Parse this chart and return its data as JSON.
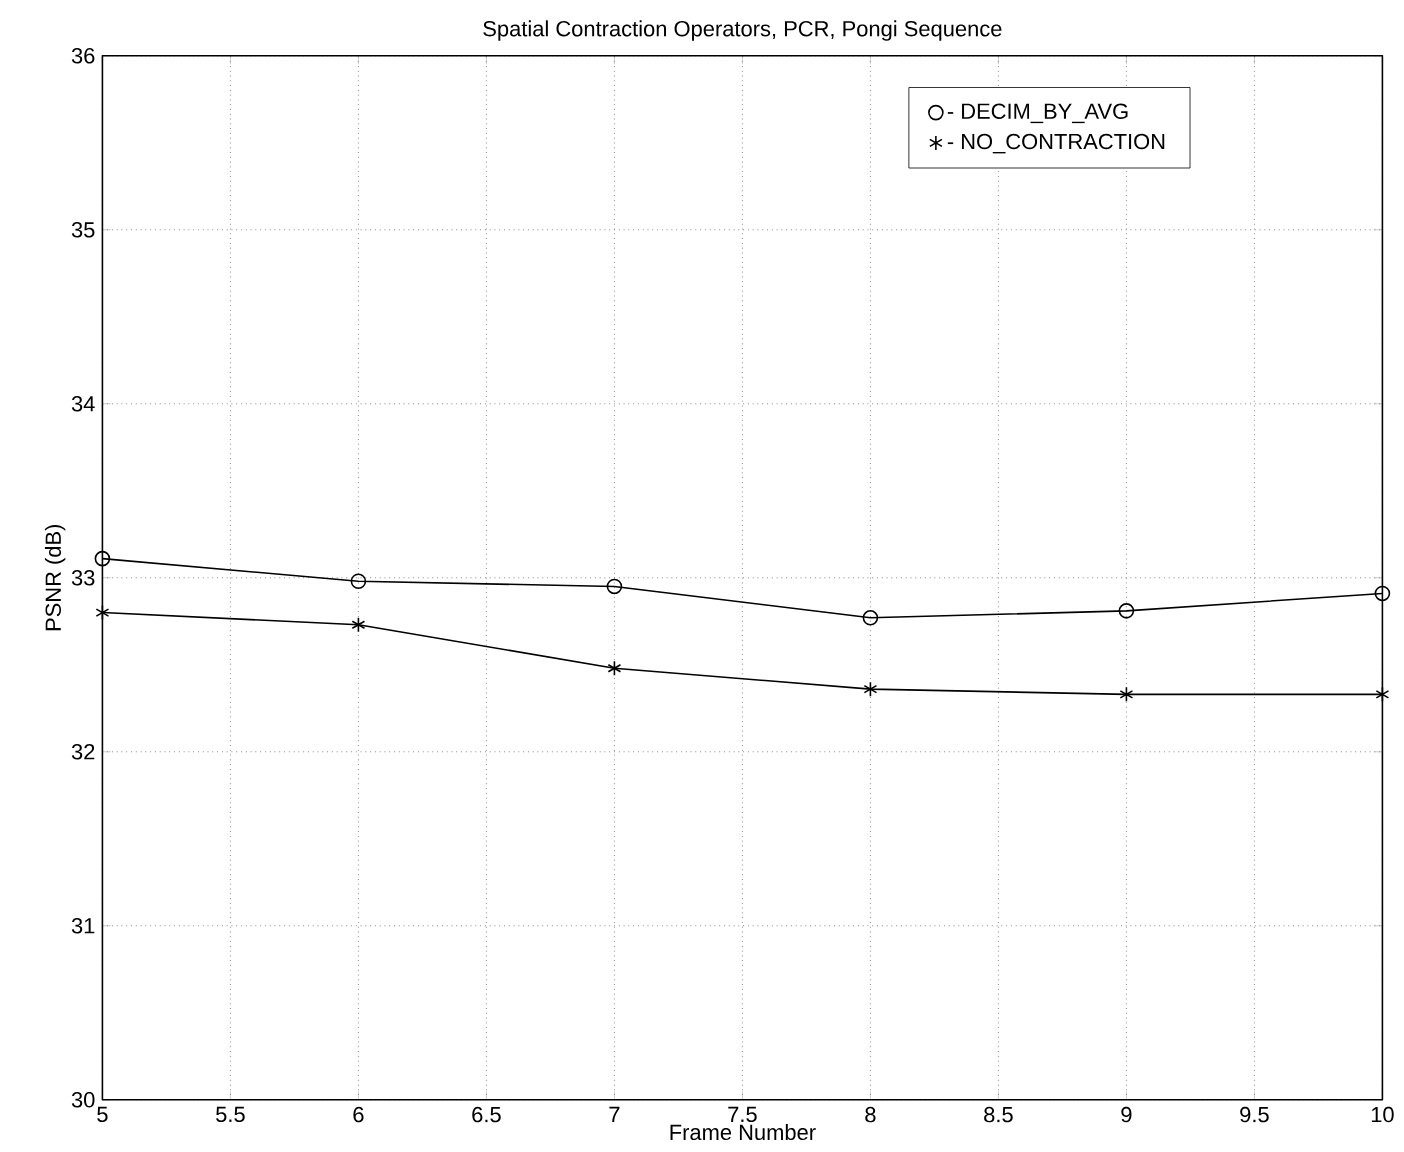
{
  "chart_data": {
    "type": "line",
    "title": "Spatial Contraction Operators, PCR, Pongi Sequence",
    "xlabel": "Frame Number",
    "ylabel": "PSNR (dB)",
    "x": [
      5,
      6,
      7,
      8,
      9,
      10
    ],
    "series": [
      {
        "name": "- DECIM_BY_AVG",
        "color": "#000000",
        "marker": "circle",
        "values": [
          33.11,
          32.98,
          32.95,
          32.77,
          32.81,
          32.91
        ]
      },
      {
        "name": "- NO_CONTRACTION",
        "color": "#000000",
        "marker": "cross",
        "values": [
          32.8,
          32.73,
          32.48,
          32.36,
          32.33,
          32.33
        ]
      }
    ],
    "xlim": [
      5,
      10
    ],
    "ylim": [
      30,
      36
    ],
    "xticks": [
      5,
      5.5,
      6,
      6.5,
      7,
      7.5,
      8,
      8.5,
      9,
      9.5,
      10
    ],
    "yticks": [
      30,
      31,
      32,
      33,
      34,
      35,
      36
    ],
    "grid": true,
    "legend": "top right",
    "line_style": "solid"
  }
}
